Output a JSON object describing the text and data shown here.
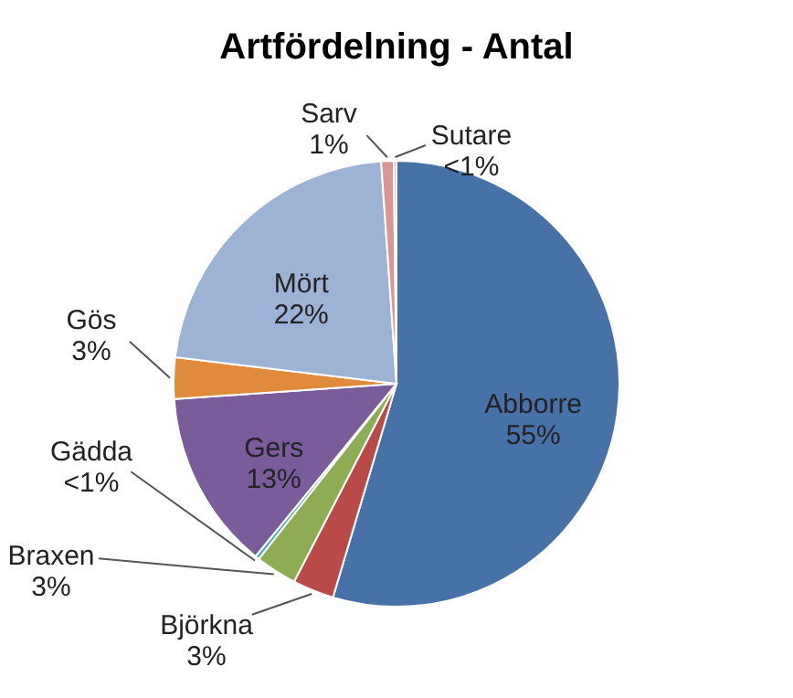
{
  "chart_data": {
    "type": "pie",
    "title": "Artfördelning - Antal",
    "categories": [
      "Abborre",
      "Björkna",
      "Braxen",
      "Gädda",
      "Gers",
      "Gös",
      "Mört",
      "Sarv",
      "Sutare"
    ],
    "values": [
      54.6,
      3,
      3,
      0.3,
      13,
      3,
      22,
      0.9,
      0.2
    ],
    "value_labels": [
      "55%",
      "3%",
      "3%",
      "<1%",
      "13%",
      "3%",
      "22%",
      "1%",
      "<1%"
    ],
    "colors": [
      "#4672a8",
      "#b94a47",
      "#8eac54",
      "#4bacc6",
      "#7a5c9a",
      "#e08a3c",
      "#9db3d6",
      "#d99694",
      "#f2b4a8"
    ]
  }
}
